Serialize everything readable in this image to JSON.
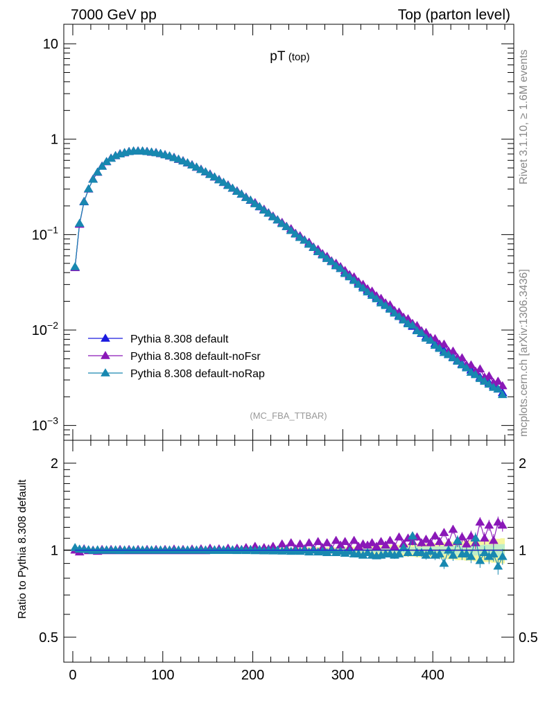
{
  "header": {
    "left": "7000 GeV pp",
    "right": "Top (parton level)"
  },
  "side_labels": {
    "rivet": "Rivet 3.1.10, ≥ 1.6M events",
    "mcplots": "mcplots.cern.ch [arXiv:1306.3436]"
  },
  "colors": {
    "default": "#1a1adf",
    "noFsr": "#8a18b8",
    "noRap": "#1888b0",
    "band_outer": "#f6f6a0",
    "band_inner": "#bfeec8"
  },
  "chart_data": [
    {
      "type": "line",
      "title": "pT",
      "title_sub": "(top)",
      "watermark": "(MC_FBA_TTBAR)",
      "xlabel": "",
      "ylabel": "",
      "y_scale": "log",
      "xlim": [
        -10,
        490
      ],
      "ylim": [
        0.0007,
        16
      ],
      "ytick_labels": [
        {
          "value": 0.001,
          "base": "10",
          "exp": "−3"
        },
        {
          "value": 0.01,
          "base": "10",
          "exp": "−2"
        },
        {
          "value": 0.1,
          "base": "10",
          "exp": "−1"
        },
        {
          "value": 1,
          "base": "1",
          "exp": ""
        },
        {
          "value": 10,
          "base": "10",
          "exp": ""
        }
      ],
      "legend_position": "bottom-left",
      "grid": false,
      "x": [
        2.5,
        7.5,
        12.5,
        17.5,
        22.5,
        27.5,
        32.5,
        37.5,
        42.5,
        47.5,
        52.5,
        57.5,
        62.5,
        67.5,
        72.5,
        77.5,
        82.5,
        87.5,
        92.5,
        97.5,
        102.5,
        107.5,
        112.5,
        117.5,
        122.5,
        127.5,
        132.5,
        137.5,
        142.5,
        147.5,
        152.5,
        157.5,
        162.5,
        167.5,
        172.5,
        177.5,
        182.5,
        187.5,
        192.5,
        197.5,
        202.5,
        207.5,
        212.5,
        217.5,
        222.5,
        227.5,
        232.5,
        237.5,
        242.5,
        247.5,
        252.5,
        257.5,
        262.5,
        267.5,
        272.5,
        277.5,
        282.5,
        287.5,
        292.5,
        297.5,
        302.5,
        307.5,
        312.5,
        317.5,
        322.5,
        327.5,
        332.5,
        337.5,
        342.5,
        347.5,
        352.5,
        357.5,
        362.5,
        367.5,
        372.5,
        377.5,
        382.5,
        387.5,
        392.5,
        397.5,
        402.5,
        407.5,
        412.5,
        417.5,
        422.5,
        427.5,
        432.5,
        437.5,
        442.5,
        447.5,
        452.5,
        457.5,
        462.5,
        467.5,
        472.5,
        477.5
      ],
      "series": [
        {
          "name": "Pythia 8.308 default",
          "color_key": "default",
          "values": [
            0.045,
            0.13,
            0.22,
            0.3,
            0.38,
            0.45,
            0.52,
            0.58,
            0.63,
            0.67,
            0.7,
            0.72,
            0.74,
            0.75,
            0.75,
            0.75,
            0.74,
            0.73,
            0.72,
            0.705,
            0.685,
            0.665,
            0.64,
            0.615,
            0.59,
            0.563,
            0.535,
            0.507,
            0.48,
            0.453,
            0.426,
            0.4,
            0.375,
            0.351,
            0.327,
            0.305,
            0.284,
            0.264,
            0.245,
            0.228,
            0.211,
            0.195,
            0.181,
            0.167,
            0.154,
            0.142,
            0.131,
            0.121,
            0.111,
            0.102,
            0.094,
            0.087,
            0.08,
            0.073,
            0.067,
            0.062,
            0.057,
            0.052,
            0.048,
            0.044,
            0.04,
            0.037,
            0.034,
            0.031,
            0.0285,
            0.026,
            0.024,
            0.022,
            0.02,
            0.0185,
            0.017,
            0.0155,
            0.0142,
            0.013,
            0.0119,
            0.0109,
            0.01,
            0.0092,
            0.0085,
            0.0078,
            0.0072,
            0.0066,
            0.0061,
            0.0056,
            0.0052,
            0.0048,
            0.0044,
            0.0041,
            0.0038,
            0.0035,
            0.0032,
            0.003,
            0.0028,
            0.0026,
            0.0024,
            0.0022
          ]
        },
        {
          "name": "Pythia 8.308 default-noFsr",
          "color_key": "noFsr",
          "values": [
            0.045,
            0.128,
            0.222,
            0.299,
            0.381,
            0.449,
            0.522,
            0.578,
            0.632,
            0.668,
            0.703,
            0.719,
            0.742,
            0.748,
            0.753,
            0.748,
            0.744,
            0.727,
            0.724,
            0.702,
            0.688,
            0.662,
            0.645,
            0.612,
            0.594,
            0.561,
            0.539,
            0.506,
            0.484,
            0.452,
            0.431,
            0.4,
            0.378,
            0.351,
            0.331,
            0.305,
            0.287,
            0.266,
            0.247,
            0.229,
            0.216,
            0.196,
            0.184,
            0.169,
            0.156,
            0.143,
            0.134,
            0.122,
            0.115,
            0.103,
            0.097,
            0.088,
            0.083,
            0.074,
            0.07,
            0.063,
            0.059,
            0.053,
            0.05,
            0.046,
            0.042,
            0.038,
            0.036,
            0.032,
            0.03,
            0.027,
            0.0255,
            0.0228,
            0.0214,
            0.0192,
            0.0183,
            0.016,
            0.0154,
            0.0136,
            0.0131,
            0.0117,
            0.0111,
            0.0098,
            0.0094,
            0.0083,
            0.0081,
            0.0071,
            0.0071,
            0.006,
            0.006,
            0.0051,
            0.0051,
            0.0043,
            0.0043,
            0.0037,
            0.0039,
            0.0032,
            0.0033,
            0.0028,
            0.0029,
            0.0026
          ]
        },
        {
          "name": "Pythia 8.308 default-noRap",
          "color_key": "noRap",
          "values": [
            0.046,
            0.131,
            0.221,
            0.301,
            0.379,
            0.451,
            0.519,
            0.581,
            0.629,
            0.671,
            0.698,
            0.721,
            0.739,
            0.751,
            0.749,
            0.751,
            0.739,
            0.731,
            0.719,
            0.706,
            0.684,
            0.666,
            0.639,
            0.616,
            0.589,
            0.564,
            0.534,
            0.508,
            0.479,
            0.454,
            0.425,
            0.401,
            0.374,
            0.352,
            0.326,
            0.306,
            0.283,
            0.265,
            0.244,
            0.229,
            0.21,
            0.196,
            0.18,
            0.167,
            0.153,
            0.142,
            0.13,
            0.121,
            0.11,
            0.101,
            0.093,
            0.087,
            0.079,
            0.073,
            0.066,
            0.061,
            0.056,
            0.052,
            0.047,
            0.044,
            0.039,
            0.036,
            0.033,
            0.03,
            0.0275,
            0.025,
            0.023,
            0.0212,
            0.0192,
            0.018,
            0.0165,
            0.015,
            0.0138,
            0.0127,
            0.0116,
            0.0112,
            0.0098,
            0.0093,
            0.0082,
            0.0078,
            0.0069,
            0.0064,
            0.0058,
            0.0055,
            0.0051,
            0.0047,
            0.0043,
            0.004,
            0.0036,
            0.0034,
            0.0031,
            0.0029,
            0.0027,
            0.0025,
            0.0024,
            0.0021
          ]
        }
      ]
    },
    {
      "type": "line",
      "title": "",
      "xlabel": "",
      "ylabel": "Ratio to Pythia 8.308 default",
      "y_scale": "log",
      "xlim": [
        -10,
        490
      ],
      "ylim": [
        0.41,
        2.4
      ],
      "yticks_labeled": [
        0.5,
        1,
        2
      ],
      "ytick_label_text": [
        "0.5",
        "1",
        "2"
      ],
      "xticks_labeled": [
        0,
        100,
        200,
        300,
        400
      ],
      "xtick_label_text": [
        "0",
        "100",
        "200",
        "300",
        "400"
      ],
      "reference_line": 1,
      "x": [
        2.5,
        7.5,
        12.5,
        17.5,
        22.5,
        27.5,
        32.5,
        37.5,
        42.5,
        47.5,
        52.5,
        57.5,
        62.5,
        67.5,
        72.5,
        77.5,
        82.5,
        87.5,
        92.5,
        97.5,
        102.5,
        107.5,
        112.5,
        117.5,
        122.5,
        127.5,
        132.5,
        137.5,
        142.5,
        147.5,
        152.5,
        157.5,
        162.5,
        167.5,
        172.5,
        177.5,
        182.5,
        187.5,
        192.5,
        197.5,
        202.5,
        207.5,
        212.5,
        217.5,
        222.5,
        227.5,
        232.5,
        237.5,
        242.5,
        247.5,
        252.5,
        257.5,
        262.5,
        267.5,
        272.5,
        277.5,
        282.5,
        287.5,
        292.5,
        297.5,
        302.5,
        307.5,
        312.5,
        317.5,
        322.5,
        327.5,
        332.5,
        337.5,
        342.5,
        347.5,
        352.5,
        357.5,
        362.5,
        367.5,
        372.5,
        377.5,
        382.5,
        387.5,
        392.5,
        397.5,
        402.5,
        407.5,
        412.5,
        417.5,
        422.5,
        427.5,
        432.5,
        437.5,
        442.5,
        447.5,
        452.5,
        457.5,
        462.5,
        467.5,
        472.5,
        477.5
      ],
      "band": {
        "outer_half_width": [
          0.02,
          0.015,
          0.015,
          0.015,
          0.015,
          0.015,
          0.015,
          0.015,
          0.015,
          0.015,
          0.015,
          0.015,
          0.015,
          0.015,
          0.015,
          0.015,
          0.015,
          0.015,
          0.015,
          0.015,
          0.015,
          0.015,
          0.015,
          0.015,
          0.015,
          0.015,
          0.015,
          0.015,
          0.015,
          0.015,
          0.015,
          0.015,
          0.015,
          0.015,
          0.015,
          0.015,
          0.015,
          0.015,
          0.015,
          0.015,
          0.015,
          0.015,
          0.02,
          0.02,
          0.02,
          0.02,
          0.02,
          0.02,
          0.02,
          0.02,
          0.02,
          0.02,
          0.025,
          0.025,
          0.025,
          0.025,
          0.025,
          0.025,
          0.025,
          0.03,
          0.03,
          0.03,
          0.03,
          0.03,
          0.035,
          0.035,
          0.035,
          0.04,
          0.04,
          0.04,
          0.045,
          0.045,
          0.045,
          0.05,
          0.05,
          0.05,
          0.055,
          0.055,
          0.055,
          0.06,
          0.06,
          0.065,
          0.065,
          0.07,
          0.07,
          0.075,
          0.075,
          0.08,
          0.08,
          0.085,
          0.085,
          0.09,
          0.09,
          0.095,
          0.095,
          0.1
        ],
        "inner_half_width": [
          0.01,
          0.008,
          0.008,
          0.008,
          0.008,
          0.008,
          0.008,
          0.008,
          0.008,
          0.008,
          0.008,
          0.008,
          0.008,
          0.008,
          0.008,
          0.008,
          0.008,
          0.008,
          0.008,
          0.008,
          0.008,
          0.008,
          0.008,
          0.008,
          0.008,
          0.008,
          0.008,
          0.008,
          0.008,
          0.008,
          0.008,
          0.008,
          0.008,
          0.008,
          0.008,
          0.008,
          0.008,
          0.008,
          0.008,
          0.008,
          0.008,
          0.008,
          0.01,
          0.01,
          0.01,
          0.01,
          0.01,
          0.01,
          0.01,
          0.01,
          0.01,
          0.01,
          0.012,
          0.012,
          0.012,
          0.012,
          0.012,
          0.012,
          0.012,
          0.015,
          0.015,
          0.015,
          0.015,
          0.015,
          0.018,
          0.018,
          0.018,
          0.02,
          0.02,
          0.02,
          0.022,
          0.022,
          0.022,
          0.025,
          0.025,
          0.025,
          0.028,
          0.028,
          0.028,
          0.03,
          0.03,
          0.032,
          0.032,
          0.035,
          0.035,
          0.038,
          0.038,
          0.04,
          0.04,
          0.042,
          0.042,
          0.045,
          0.045,
          0.048,
          0.048,
          0.05
        ]
      },
      "series": [
        {
          "name": "Pythia 8.308 default",
          "color_key": "default",
          "values": [
            1,
            1,
            1,
            1,
            1,
            1,
            1,
            1,
            1,
            1,
            1,
            1,
            1,
            1,
            1,
            1,
            1,
            1,
            1,
            1,
            1,
            1,
            1,
            1,
            1,
            1,
            1,
            1,
            1,
            1,
            1,
            1,
            1,
            1,
            1,
            1,
            1,
            1,
            1,
            1,
            1,
            1,
            1,
            1,
            1,
            1,
            1,
            1,
            1,
            1,
            1,
            1,
            1,
            1,
            1,
            1,
            1,
            1,
            1,
            1,
            1,
            1,
            1,
            1,
            1,
            1,
            1,
            1,
            1,
            1,
            1,
            1,
            1,
            1,
            1,
            1,
            1,
            1,
            1,
            1,
            1,
            1,
            1,
            1,
            1,
            1,
            1,
            1,
            1,
            1,
            1,
            1,
            1,
            1,
            1,
            1
          ]
        },
        {
          "name": "Pythia 8.308 default-noFsr",
          "color_key": "noFsr",
          "values": [
            1.0,
            0.985,
            1.01,
            0.995,
            1.0,
            0.99,
            1.005,
            0.995,
            1.005,
            0.995,
            1.005,
            0.995,
            1.005,
            0.995,
            1.005,
            0.995,
            1.005,
            0.995,
            1.005,
            0.995,
            1.005,
            0.995,
            1.008,
            0.995,
            1.005,
            0.995,
            1.008,
            0.995,
            1.01,
            0.995,
            1.015,
            1.0,
            1.01,
            1.0,
            1.015,
            1.0,
            1.015,
            1.005,
            1.02,
            1.005,
            1.03,
            1.0,
            1.02,
            1.01,
            1.03,
            1.0,
            1.05,
            1.01,
            1.06,
            1.01,
            1.05,
            1.01,
            1.06,
            1.01,
            1.07,
            1.02,
            1.06,
            1.01,
            1.08,
            1.04,
            1.07,
            1.02,
            1.08,
            1.03,
            1.05,
            1.04,
            1.06,
            1.03,
            1.07,
            1.04,
            1.08,
            1.03,
            1.11,
            1.05,
            1.1,
            1.07,
            1.11,
            1.06,
            1.09,
            1.06,
            1.12,
            1.07,
            1.15,
            1.06,
            1.18,
            1.07,
            1.11,
            1.05,
            1.12,
            1.06,
            1.25,
            1.1,
            1.22,
            1.08,
            1.25,
            1.22
          ]
        },
        {
          "name": "Pythia 8.308 default-noRap",
          "color_key": "noRap",
          "values": [
            1.02,
            1.008,
            1.005,
            1.003,
            0.997,
            1.002,
            0.998,
            1.002,
            0.998,
            1.002,
            0.997,
            1.001,
            0.998,
            1.001,
            0.998,
            1.001,
            0.998,
            1.001,
            0.998,
            1.001,
            0.998,
            1.001,
            0.998,
            1.001,
            0.998,
            1.001,
            0.998,
            1.001,
            0.998,
            1.001,
            0.997,
            1.002,
            0.997,
            1.002,
            0.997,
            1.002,
            0.996,
            1.003,
            0.996,
            1.004,
            0.995,
            1.005,
            0.994,
            1.0,
            0.993,
            1.0,
            0.992,
            1.0,
            0.99,
            0.995,
            0.99,
            1.0,
            0.985,
            1.0,
            0.985,
            0.99,
            0.98,
            1.0,
            0.98,
            0.99,
            0.975,
            0.99,
            0.97,
            0.97,
            0.96,
            0.98,
            0.96,
            0.955,
            0.96,
            0.97,
            0.97,
            0.96,
            0.97,
            1.02,
            0.98,
            1.12,
            0.98,
            0.98,
            0.96,
            0.99,
            0.96,
            0.97,
            0.9,
            1.0,
            0.96,
            1.08,
            0.97,
            0.97,
            0.95,
            1.1,
            0.92,
            0.98,
            0.95,
            0.97,
            0.88,
            0.95
          ]
        }
      ]
    }
  ]
}
